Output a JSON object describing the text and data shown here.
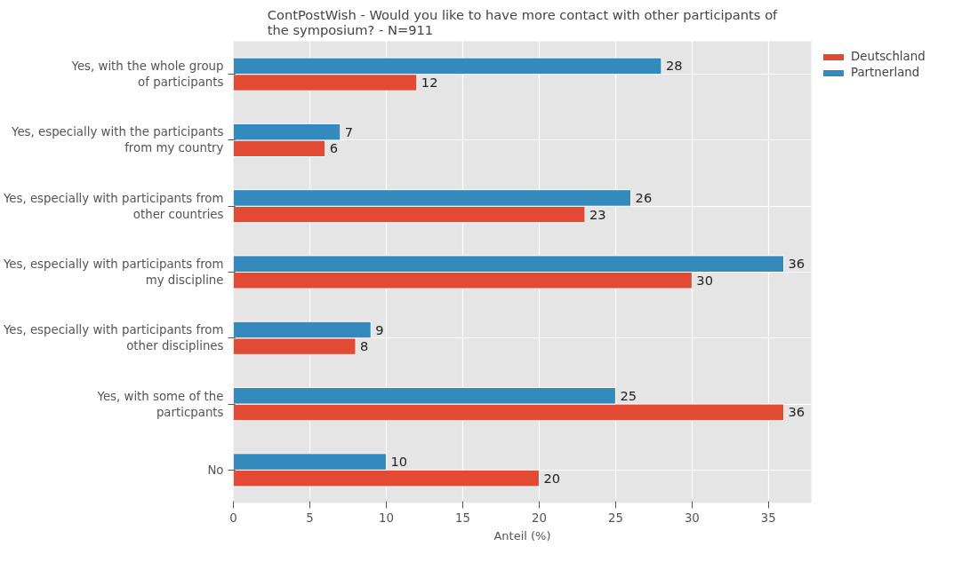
{
  "chart_data": {
    "type": "bar",
    "orientation": "horizontal",
    "title": "ContPostWish - Would you like to have more contact with other participants of\nthe symposium? - N=911",
    "xlabel": "Anteil (%)",
    "categories": [
      "Yes, with the whole group\nof participants",
      "Yes, especially with the participants\nfrom my country",
      "Yes, especially with participants from\nother countries",
      "Yes, especially with participants from\nmy discipline",
      "Yes, especially with participants from\nother disciplines",
      "Yes, with some of the\nparticpants",
      "No"
    ],
    "series": [
      {
        "name": "Deutschland",
        "color": "#e24a33",
        "values": [
          12,
          6,
          23,
          30,
          8,
          36,
          20
        ]
      },
      {
        "name": "Partnerland",
        "color": "#348abd",
        "values": [
          28,
          7,
          26,
          36,
          9,
          25,
          10
        ]
      }
    ],
    "xlim": [
      0,
      37.8
    ],
    "xticks": [
      0,
      5,
      10,
      15,
      20,
      25,
      30,
      35
    ],
    "grid": true,
    "legend": "top right",
    "data_labels": true
  }
}
